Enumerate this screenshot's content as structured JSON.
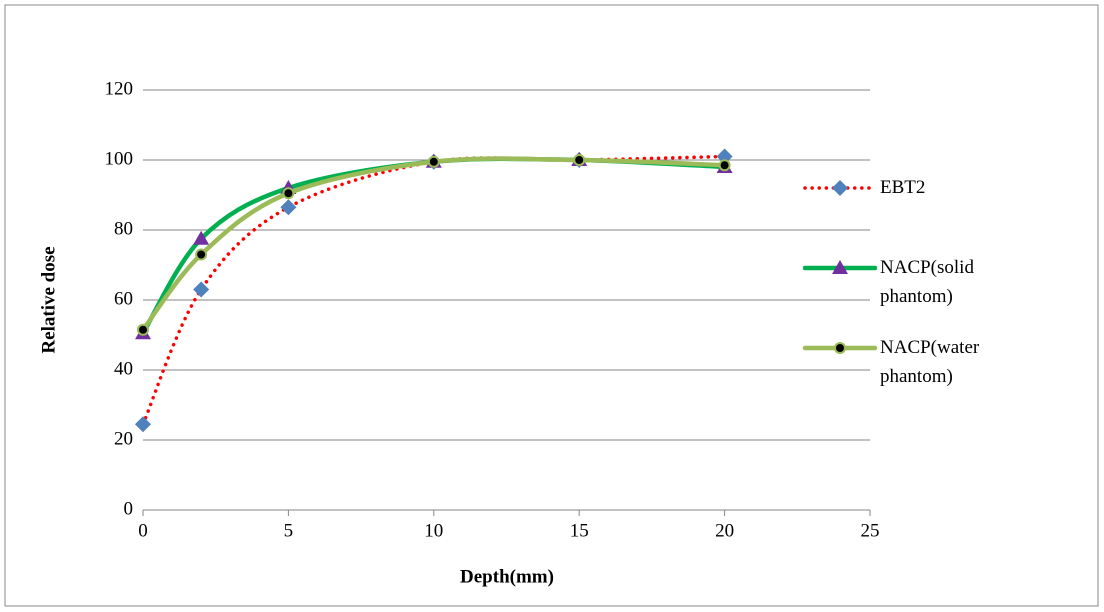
{
  "chart_data": {
    "type": "line",
    "xlabel": "Depth(mm)",
    "ylabel": "Relative dose",
    "x": [
      0,
      2,
      5,
      10,
      15,
      20
    ],
    "series": [
      {
        "name": "EBT2",
        "color": "#ff0000",
        "marker_color": "#4f81bd",
        "marker": "diamond",
        "line_style": "dotted",
        "values": [
          24.5,
          63,
          86.5,
          99.5,
          100,
          101
        ]
      },
      {
        "name": "NACP(solid phantom)",
        "color": "#00b050",
        "marker_color": "#7030a0",
        "marker": "triangle",
        "line_style": "solid",
        "values": [
          50.5,
          77.5,
          92,
          99.5,
          100,
          98
        ]
      },
      {
        "name": "NACP(water phantom)",
        "color": "#9bbb59",
        "marker_color": "#000000",
        "marker": "circle",
        "line_style": "solid",
        "values": [
          51.5,
          73,
          90.5,
          99.5,
          100,
          98.5
        ]
      }
    ],
    "xlim": [
      0,
      25
    ],
    "xticks": [
      0,
      5,
      10,
      15,
      20,
      25
    ],
    "ylim": [
      0,
      120
    ],
    "yticks": [
      0,
      20,
      40,
      60,
      80,
      100,
      120
    ],
    "grid": true,
    "legend": "right"
  }
}
